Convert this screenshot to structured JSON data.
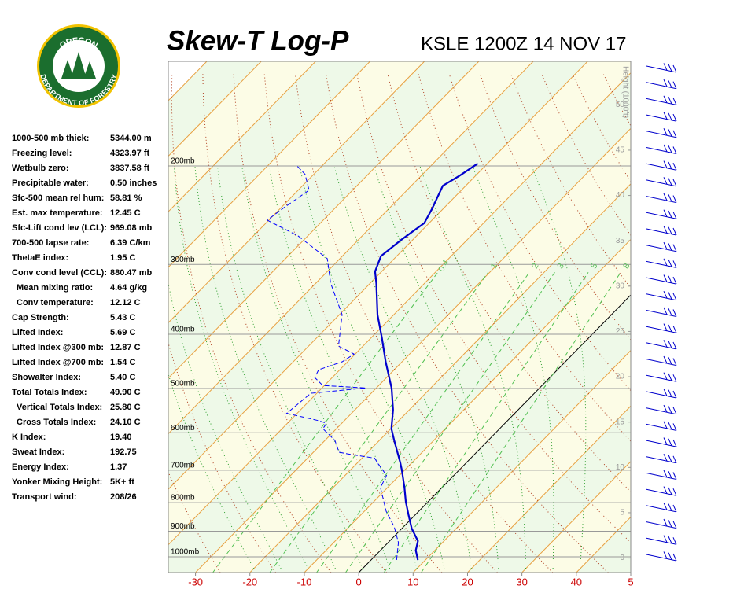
{
  "logo": {
    "top": "OREGON",
    "bottom": "DEPARTMENT OF FORESTRY"
  },
  "indices": [
    {
      "label": "1000-500 mb thick:",
      "value": "5344.00 m"
    },
    {
      "label": "Freezing level:",
      "value": "4323.97 ft"
    },
    {
      "label": "Wetbulb zero:",
      "value": "3837.58 ft"
    },
    {
      "label": "Precipitable water:",
      "value": "0.50 inches"
    },
    {
      "label": "Sfc-500 mean rel hum:",
      "value": "58.81 %"
    },
    {
      "label": "Est. max temperature:",
      "value": "12.45 C"
    },
    {
      "label": "Sfc-Lift cond lev (LCL):",
      "value": "969.08 mb"
    },
    {
      "label": "700-500 lapse rate:",
      "value": "6.39 C/km"
    },
    {
      "label": "ThetaE index:",
      "value": "1.95 C"
    },
    {
      "label": "Conv cond level (CCL):",
      "value": "880.47 mb"
    },
    {
      "label": "Mean mixing ratio:",
      "value": "4.64 g/kg"
    },
    {
      "label": "Conv temperature:",
      "value": "12.12 C"
    },
    {
      "label": "Cap Strength:",
      "value": "5.43 C"
    },
    {
      "label": "Lifted Index:",
      "value": "5.69 C"
    },
    {
      "label": "Lifted Index @300 mb:",
      "value": "12.87 C"
    },
    {
      "label": "Lifted Index @700 mb:",
      "value": "1.54 C"
    },
    {
      "label": "Showalter Index:",
      "value": "5.40 C"
    },
    {
      "label": "Total Totals Index:",
      "value": "49.90 C"
    },
    {
      "label": "Vertical Totals Index:",
      "value": "25.80 C"
    },
    {
      "label": "Cross Totals Index:",
      "value": "24.10 C"
    },
    {
      "label": "K Index:",
      "value": "19.40"
    },
    {
      "label": "Sweat Index:",
      "value": "192.75"
    },
    {
      "label": "Energy Index:",
      "value": "1.37"
    },
    {
      "label": "Yonker Mixing Height:",
      "value": "5K+ ft"
    },
    {
      "label": "Transport wind:",
      "value": "208/26"
    }
  ],
  "chart_data": {
    "type": "skewt",
    "title": "Skew-T Log-P",
    "subtitle": "KSLE 1200Z 14 NOV 17",
    "y2label": "Height (1000ft)",
    "xlim": [
      -35,
      50
    ],
    "xticks": [
      -30,
      -20,
      -10,
      0,
      10,
      20,
      30,
      40,
      {
        "value": 50,
        "label": "5"
      }
    ],
    "xtick_color": "#cc0000",
    "ylim": [
      1067,
      130
    ],
    "log_y": true,
    "yticks": [
      {
        "value": 200,
        "label": "200mb"
      },
      {
        "value": 300,
        "label": "300mb"
      },
      {
        "value": 400,
        "label": "400mb"
      },
      {
        "value": 500,
        "label": "500mb"
      },
      {
        "value": 600,
        "label": "600mb"
      },
      {
        "value": 700,
        "label": "700mb"
      },
      {
        "value": 800,
        "label": "800mb"
      },
      {
        "value": 900,
        "label": "900mb"
      },
      {
        "value": 1000,
        "label": "1000mb"
      }
    ],
    "y2lim": [
      -1.6,
      54.8
    ],
    "y2ticks": [
      0,
      5,
      10,
      15,
      20,
      25,
      30,
      35,
      40,
      45,
      50
    ],
    "mixing_ratio_labels": [
      {
        "value": 0.4,
        "label": "0.4"
      },
      {
        "value": 1,
        "label": "1"
      },
      {
        "value": 2,
        "label": "2"
      },
      {
        "value": 3,
        "label": "3"
      },
      {
        "value": 5,
        "label": "5"
      },
      {
        "value": 8,
        "label": "8"
      }
    ],
    "series": [
      {
        "color": "#0000cc",
        "dash": false,
        "y": [
          1013,
          974,
          937,
          890,
          842,
          797,
          752,
          700,
          678,
          619,
          590,
          546,
          500,
          448,
          406,
          369,
          324,
          309,
          290,
          271,
          253,
          239,
          217,
          208,
          198
        ],
        "values": [
          8.6,
          6.5,
          5.2,
          1.8,
          -1.2,
          -4.1,
          -6.9,
          -10.5,
          -12.2,
          -17.3,
          -19.9,
          -23.0,
          -27.1,
          -33.0,
          -38.0,
          -43.0,
          -48.9,
          -51.2,
          -52.9,
          -52.1,
          -50.9,
          -52.0,
          -54.2,
          -52.9,
          -51.8
        ]
      },
      {
        "color": "#0000ff",
        "dash": true,
        "y": [
          1013,
          943,
          884,
          829,
          752,
          715,
          682,
          666,
          656,
          650,
          619,
          590,
          577,
          571,
          554,
          510,
          499,
          494,
          478,
          463,
          448,
          434,
          420,
          369,
          324,
          293,
          267,
          250,
          238,
          221,
          207,
          199
        ],
        "values": [
          4.7,
          1.9,
          -1.7,
          -6.0,
          -11.3,
          -12.4,
          -16.0,
          -17.7,
          -22.8,
          -25.3,
          -28.2,
          -32.5,
          -32.8,
          -34.7,
          -41.9,
          -41.1,
          -31.9,
          -40.3,
          -43.2,
          -43.9,
          -41.0,
          -40.2,
          -44.5,
          -49.5,
          -57.3,
          -62.3,
          -71.7,
          -80.3,
          -79.5,
          -78.0,
          -81.6,
          -85.0
        ]
      }
    ]
  }
}
